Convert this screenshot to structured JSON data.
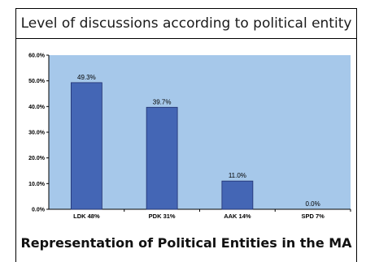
{
  "header": {
    "title": "Level of discussions according to political entity"
  },
  "footer": {
    "subtitle": "Representation of Political Entities in the MA"
  },
  "chart_data": {
    "type": "bar",
    "categories": [
      "LDK 48%",
      "PDK 31%",
      "AAK 14%",
      "SPD 7%"
    ],
    "values": [
      49.3,
      39.7,
      11.0,
      0.0
    ],
    "data_labels": [
      "49.3%",
      "39.7%",
      "11.0%",
      "0.0%"
    ],
    "yticks": [
      0,
      10,
      20,
      30,
      40,
      50,
      60
    ],
    "ytick_labels": [
      "0.0%",
      "10.0%",
      "20.0%",
      "30.0%",
      "40.0%",
      "50.0%",
      "60.0%"
    ],
    "ylim": [
      0,
      60
    ],
    "grid": false,
    "legend": false,
    "colors": {
      "plot_background": "#a6c8ea",
      "bar": "#4466b5",
      "bar_edge": "#1f2f6e"
    }
  }
}
